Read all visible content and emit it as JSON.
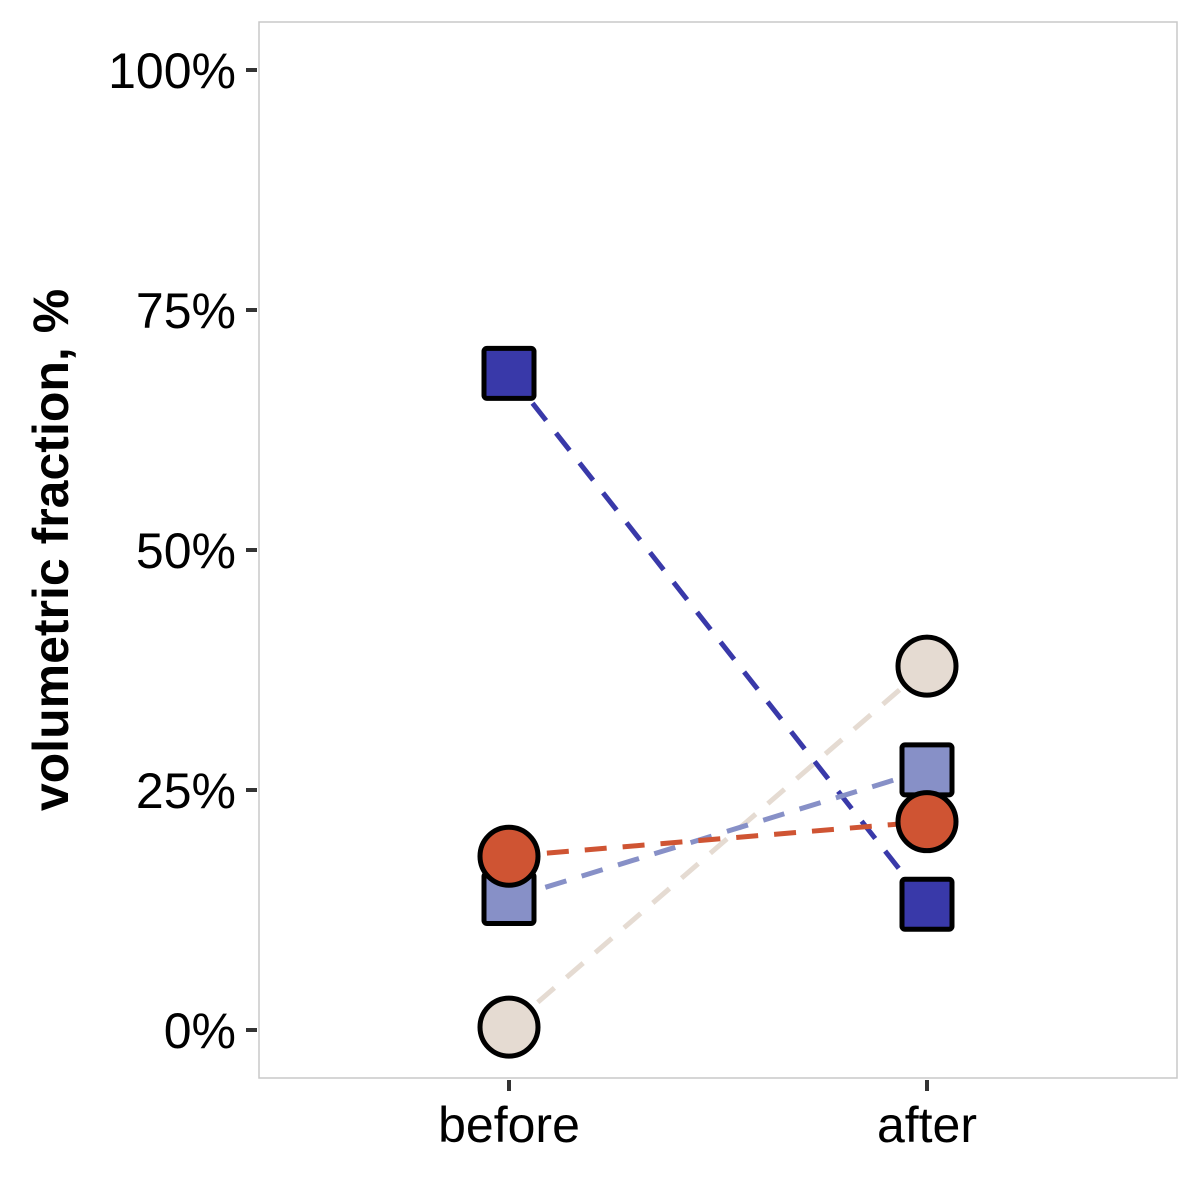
{
  "chart_data": {
    "type": "line",
    "title": "",
    "xlabel": "",
    "ylabel": "volumetric fraction, %",
    "categories": [
      "before",
      "after"
    ],
    "yticks": [
      "0%",
      "25%",
      "50%",
      "75%",
      "100%"
    ],
    "ylim": [
      0,
      100
    ],
    "grid": false,
    "legend": "none",
    "series": [
      {
        "values": [
          0.3,
          37.9
        ],
        "marker": "circle",
        "color": "#e5dbd2"
      },
      {
        "values": [
          68.4,
          13.1
        ],
        "marker": "square",
        "color": "#3939a9"
      },
      {
        "values": [
          13.7,
          27.1
        ],
        "marker": "square",
        "color": "#8790c7"
      },
      {
        "values": [
          18.1,
          21.7
        ],
        "marker": "circle",
        "color": "#cf5433"
      }
    ]
  }
}
